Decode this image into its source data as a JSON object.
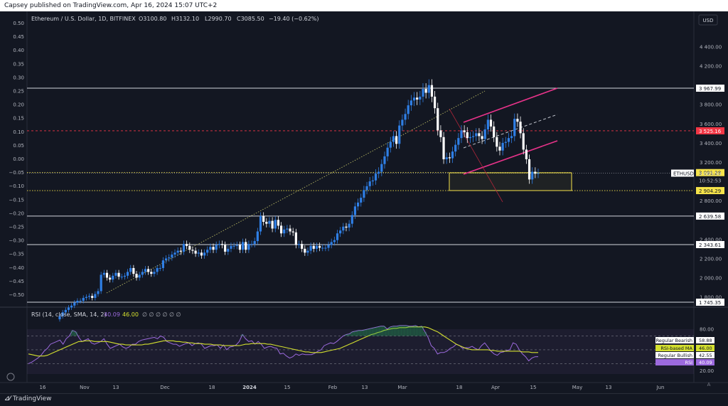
{
  "topbar": {
    "text": "Capsey published on TradingView.com, Apr 16, 2024 15:07 UTC+2"
  },
  "footer": {
    "brand": "TradingView",
    "logo_icon": "tv-logo-icon"
  },
  "colors": {
    "up": "#2f7fe6",
    "down": "#ffffff",
    "rsi": "#9c6ade",
    "rsi_ma": "#d4e02f",
    "pink": "#e8338a",
    "red": "#f23645",
    "yellow": "#f5e34a"
  },
  "chart_data": [
    {
      "type": "candlestick",
      "title": "Ethereum / U.S. Dollar, 1D, BITFINEX",
      "ohlc_label": {
        "o": "O3100.80",
        "h": "H3132.10",
        "l": "L2990.70",
        "c": "C3085.50",
        "chg": "−19.40 (−0.62%)"
      },
      "currency": "USD",
      "right_axis_ticks": [
        "4 400.00",
        "4 200.00",
        "3 800.00",
        "3 600.00",
        "3 400.00",
        "3 200.00",
        "2 800.00",
        "2 400.00",
        "2 200.00",
        "2 000.00",
        "1 800.00"
      ],
      "left_axis_ticks": [
        "0.50",
        "0.45",
        "0.40",
        "0.35",
        "0.30",
        "0.25",
        "0.20",
        "0.15",
        "0.10",
        "0.05",
        "0.00",
        "−0.05",
        "−0.10",
        "−0.15",
        "−0.20",
        "−0.25",
        "−0.30",
        "−0.35",
        "−0.40",
        "−0.45",
        "−0.50"
      ],
      "x_ticks": [
        "16",
        "Nov",
        "13",
        "Dec",
        "18",
        "2024",
        "15",
        "Feb",
        "13",
        "Mar",
        "18",
        "Apr",
        "15",
        "May",
        "13",
        "Jun"
      ],
      "ylim": [
        1700,
        4550
      ],
      "horizontal_levels": [
        {
          "label": "3 967.99",
          "value": 3967.99,
          "style": "solid",
          "color": "#d1d4dc"
        },
        {
          "label": "3 525.16",
          "value": 3525.16,
          "style": "dashed",
          "color": "#f23645"
        },
        {
          "label": "3 091.28",
          "value": 3091.28,
          "style": "dotted",
          "color": "#f5e34a"
        },
        {
          "label": "2 904.29",
          "value": 2904.29,
          "style": "dotted",
          "color": "#f5e34a"
        },
        {
          "label": "2 639.58",
          "value": 2639.58,
          "style": "solid",
          "color": "#d1d4dc"
        },
        {
          "label": "2 343.61",
          "value": 2343.61,
          "style": "solid",
          "color": "#d1d4dc"
        },
        {
          "label": "1 745.35",
          "value": 1745.35,
          "style": "solid",
          "color": "#d1d4dc"
        }
      ],
      "price_tag": {
        "symbol": "ETHUSD",
        "price": "3 085.50",
        "countdown": "10:52:53"
      },
      "closes": [
        1600,
        1640,
        1665,
        1690,
        1710,
        1740,
        1760,
        1760,
        1790,
        1800,
        1810,
        1790,
        1830,
        1860,
        2030,
        2050,
        2000,
        1980,
        2020,
        2050,
        2010,
        2010,
        2020,
        2060,
        2100,
        2040,
        2000,
        2030,
        2060,
        2090,
        2060,
        2040,
        2060,
        2100,
        2100,
        2180,
        2200,
        2210,
        2240,
        2260,
        2280,
        2270,
        2350,
        2330,
        2290,
        2280,
        2250,
        2260,
        2230,
        2260,
        2290,
        2320,
        2290,
        2340,
        2350,
        2340,
        2270,
        2300,
        2330,
        2330,
        2340,
        2290,
        2370,
        2290,
        2350,
        2350,
        2380,
        2480,
        2640,
        2580,
        2560,
        2590,
        2510,
        2600,
        2540,
        2460,
        2500,
        2510,
        2480,
        2470,
        2340,
        2350,
        2300,
        2260,
        2280,
        2330,
        2300,
        2330,
        2310,
        2310,
        2310,
        2340,
        2370,
        2390,
        2460,
        2490,
        2530,
        2520,
        2560,
        2650,
        2740,
        2780,
        2830,
        2910,
        2950,
        3000,
        3010,
        3080,
        3100,
        3180,
        3260,
        3350,
        3410,
        3470,
        3390,
        3580,
        3640,
        3700,
        3790,
        3840,
        3870,
        3850,
        3880,
        3960,
        3920,
        4000,
        3880,
        3760,
        3530,
        3460,
        3230,
        3250,
        3240,
        3310,
        3380,
        3450,
        3530,
        3510,
        3450,
        3460,
        3470,
        3500,
        3470,
        3440,
        3540,
        3640,
        3570,
        3460,
        3360,
        3320,
        3400,
        3410,
        3450,
        3470,
        3650,
        3620,
        3500,
        3330,
        3230,
        3020,
        3100,
        3080,
        3085.5
      ]
    },
    {
      "type": "line",
      "title": "RSI (14, close, SMA, 14, 2)",
      "values_label": [
        "40.09",
        "46.00"
      ],
      "na_marks": "∅ ∅ ∅ ∅ ∅ ∅",
      "right_axis_ticks": [
        "80.00",
        "20.00"
      ],
      "ylim": [
        15,
        90
      ],
      "levels": [
        {
          "label": "Regular Bearish",
          "value": "58.88"
        },
        {
          "label": "RSI-based MA",
          "value": "46.00"
        },
        {
          "label": "Regular Bullish",
          "value": "42.55"
        },
        {
          "label": "RSI",
          "value": "40.09"
        }
      ],
      "series": [
        {
          "name": "RSI",
          "values": [
            30,
            32,
            35,
            38,
            42,
            48,
            52,
            58,
            60,
            62,
            64,
            58,
            66,
            70,
            78,
            76,
            68,
            62,
            64,
            66,
            60,
            58,
            60,
            62,
            66,
            58,
            52,
            54,
            56,
            58,
            54,
            52,
            54,
            58,
            58,
            62,
            64,
            65,
            66,
            67,
            68,
            66,
            70,
            68,
            62,
            60,
            58,
            58,
            55,
            57,
            59,
            60,
            56,
            59,
            60,
            58,
            52,
            54,
            56,
            56,
            57,
            52,
            57,
            50,
            54,
            55,
            57,
            62,
            72,
            66,
            62,
            63,
            58,
            62,
            58,
            52,
            54,
            55,
            53,
            52,
            44,
            45,
            41,
            38,
            40,
            44,
            42,
            44,
            43,
            43,
            43,
            45,
            48,
            50,
            56,
            58,
            60,
            59,
            62,
            66,
            70,
            72,
            73,
            76,
            77,
            78,
            78,
            79,
            80,
            81,
            82,
            83,
            84,
            84,
            80,
            83,
            84,
            84,
            85,
            85,
            85,
            84,
            84,
            85,
            83,
            84,
            76,
            68,
            56,
            52,
            44,
            46,
            46,
            48,
            52,
            54,
            58,
            56,
            52,
            53,
            53,
            55,
            52,
            50,
            56,
            60,
            54,
            48,
            44,
            42,
            46,
            47,
            49,
            50,
            60,
            58,
            50,
            44,
            40,
            34,
            38,
            40,
            40.09
          ]
        },
        {
          "name": "RSI-based MA",
          "values": [
            44,
            43,
            42,
            41,
            41,
            41,
            42,
            44,
            46,
            48,
            50,
            52,
            54,
            56,
            58,
            60,
            62,
            62,
            63,
            63,
            63,
            62,
            62,
            62,
            62,
            62,
            61,
            60,
            59,
            58,
            58,
            57,
            57,
            57,
            57,
            57,
            57,
            58,
            58,
            59,
            60,
            61,
            62,
            63,
            63,
            63,
            63,
            62,
            62,
            61,
            61,
            60,
            60,
            59,
            59,
            59,
            58,
            58,
            58,
            57,
            57,
            57,
            56,
            56,
            56,
            56,
            56,
            56,
            57,
            58,
            58,
            59,
            59,
            59,
            59,
            59,
            58,
            58,
            57,
            56,
            55,
            54,
            53,
            52,
            51,
            50,
            49,
            48,
            47,
            47,
            46,
            46,
            46,
            46,
            47,
            48,
            49,
            50,
            51,
            52,
            54,
            56,
            58,
            60,
            62,
            64,
            66,
            68,
            70,
            72,
            73,
            75,
            76,
            78,
            79,
            80,
            81,
            81,
            82,
            82,
            82,
            83,
            83,
            83,
            83,
            83,
            83,
            82,
            80,
            78,
            76,
            73,
            70,
            67,
            64,
            61,
            58,
            56,
            54,
            52,
            51,
            50,
            50,
            50,
            50,
            50,
            50,
            49,
            49,
            48,
            48,
            48,
            48,
            48,
            48,
            48,
            48,
            47,
            47,
            47,
            46,
            46,
            46
          ]
        }
      ]
    }
  ]
}
